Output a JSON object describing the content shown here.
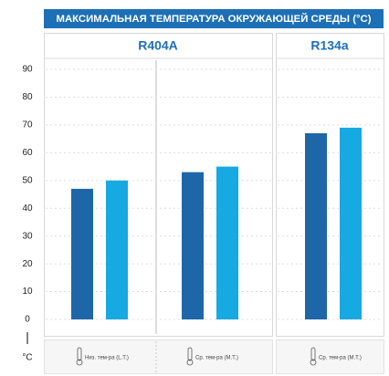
{
  "chart_data": {
    "type": "bar",
    "title": "МАКСИМАЛЬНАЯ ТЕМПЕРАТУРА ОКРУЖАЮЩЕЙ СРЕДЫ (°C)",
    "panels": [
      "R404A",
      "R134a"
    ],
    "categories": [
      "Низ. тем-ра (L.T.)",
      "Ср. тем-ра (M.T.)",
      "Ср. тем-ра (M.T.)"
    ],
    "series": [
      {
        "color": "#1d67a8",
        "values": [
          47,
          53,
          67
        ]
      },
      {
        "color": "#17a9e1",
        "values": [
          50,
          55,
          69
        ]
      }
    ],
    "y_unit": "°C",
    "ylim": [
      0,
      90
    ],
    "yticks": [
      0,
      10,
      20,
      30,
      40,
      50,
      60,
      70,
      80,
      90
    ],
    "grid": true
  }
}
